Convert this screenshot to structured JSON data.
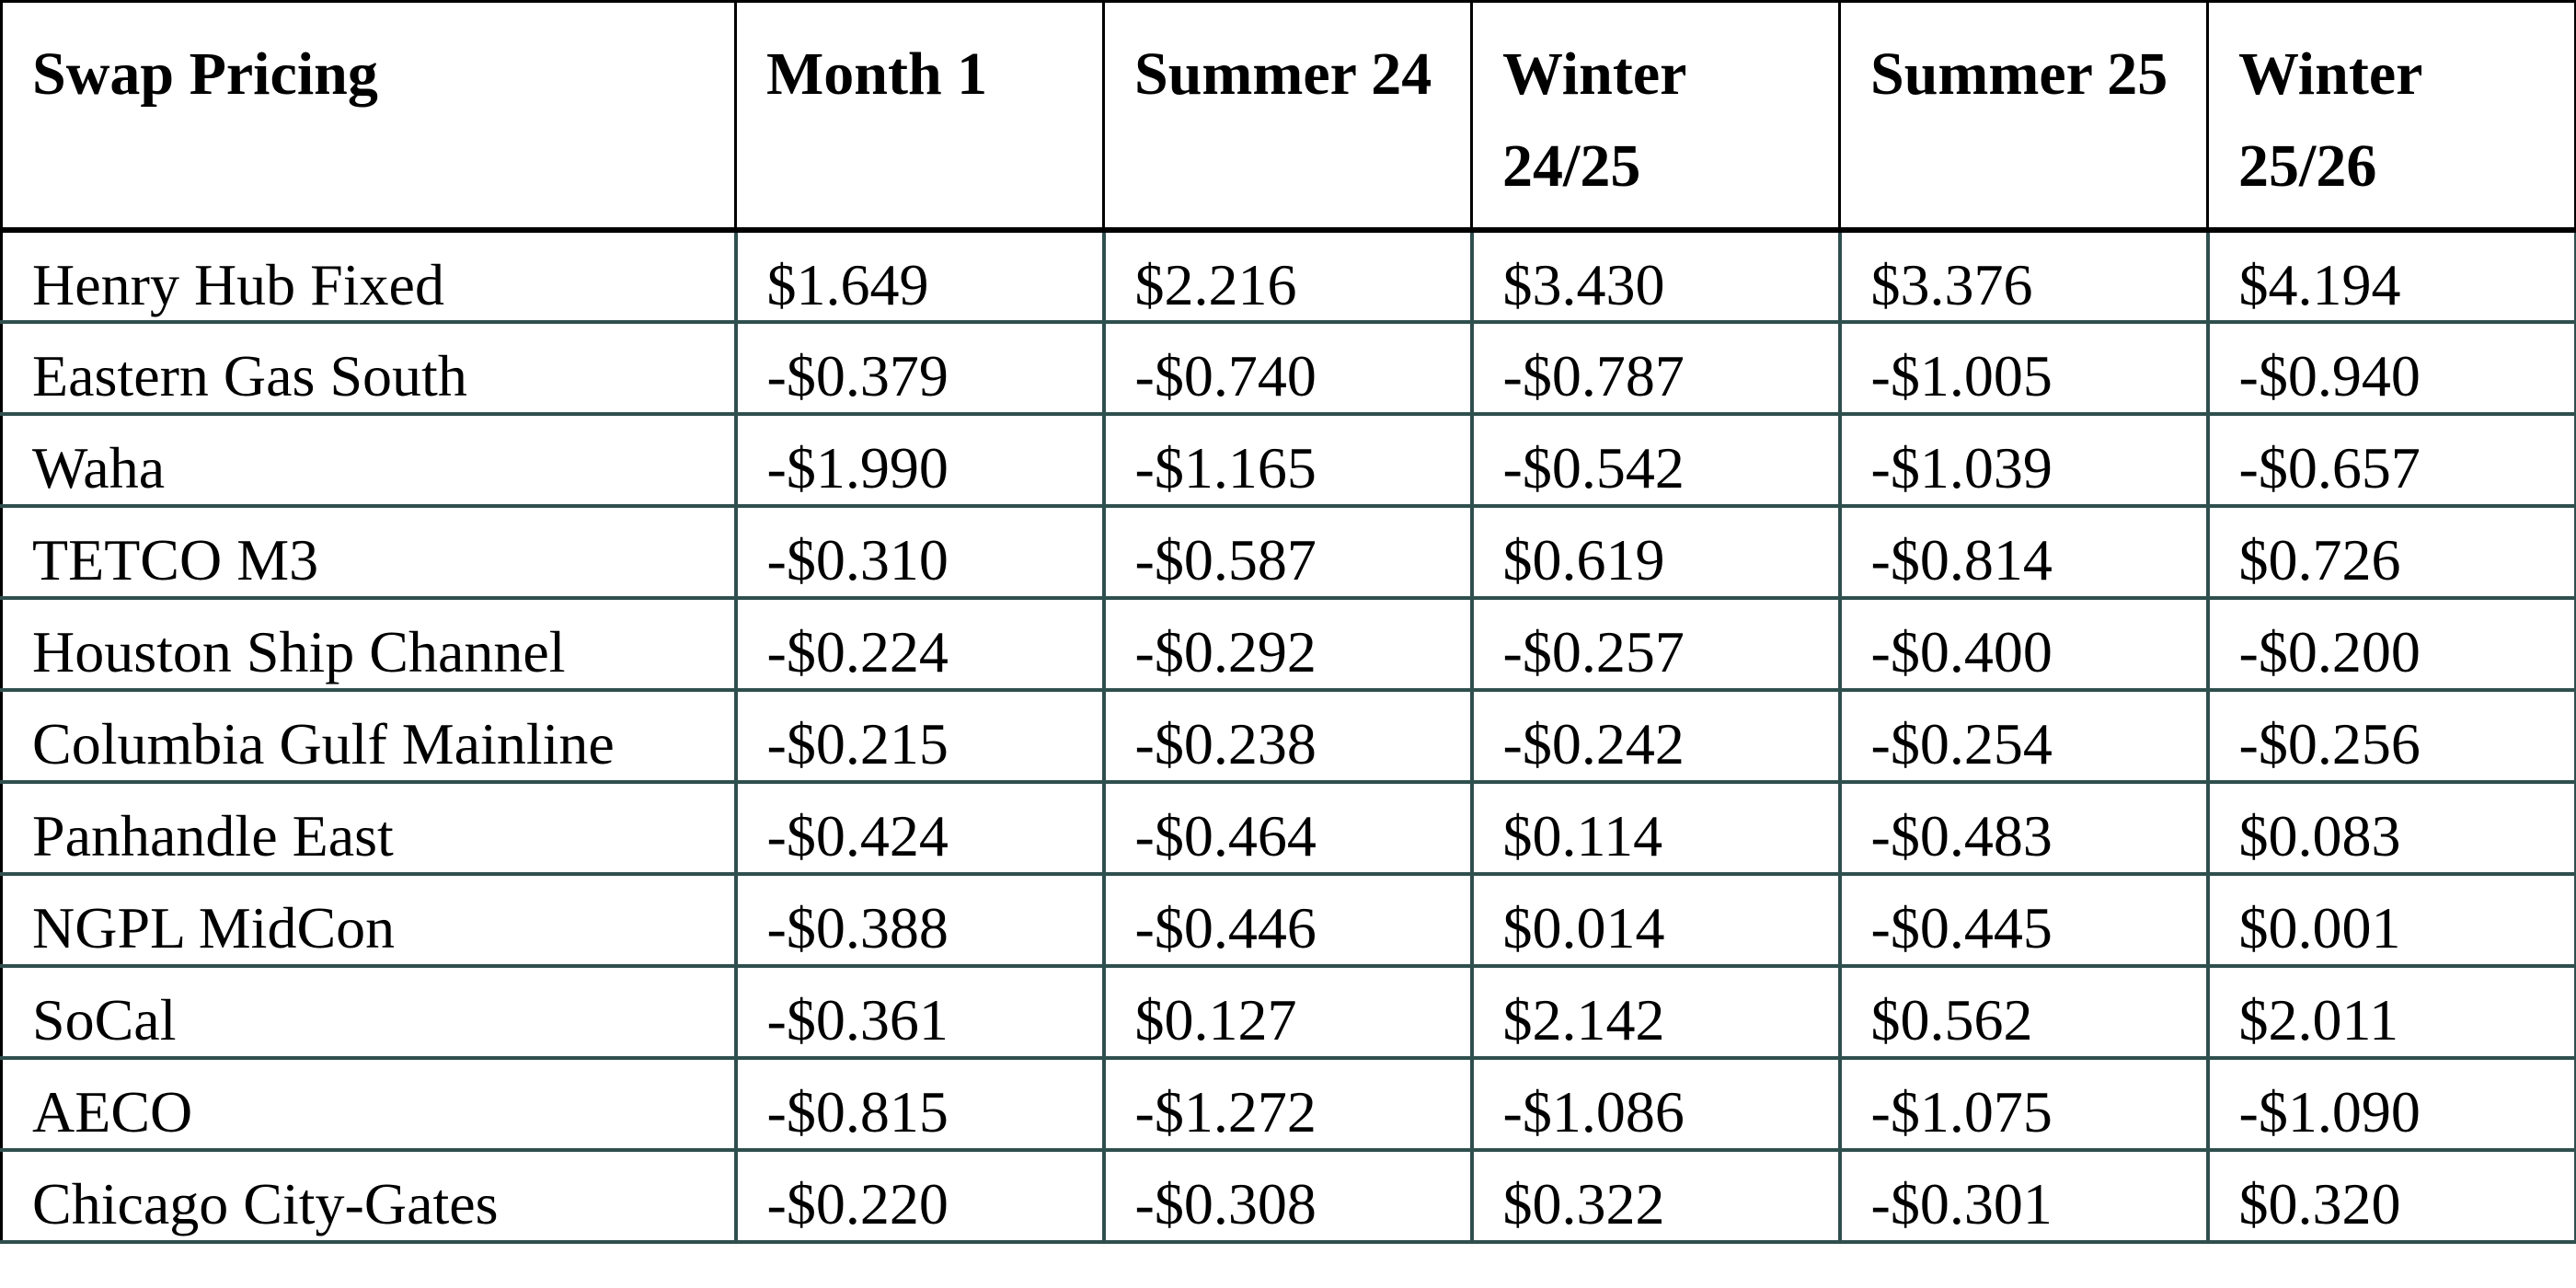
{
  "table": {
    "headers": [
      "Swap Pricing",
      "Month 1",
      "Summer 24",
      "Winter 24/25",
      "Summer 25",
      "Winter 25/26"
    ],
    "rows": [
      [
        "Henry Hub Fixed",
        "$1.649",
        "$2.216",
        "$3.430",
        "$3.376",
        "$4.194"
      ],
      [
        "Eastern Gas South",
        "-$0.379",
        "-$0.740",
        "-$0.787",
        "-$1.005",
        "-$0.940"
      ],
      [
        "Waha",
        "-$1.990",
        "-$1.165",
        "-$0.542",
        "-$1.039",
        "-$0.657"
      ],
      [
        "TETCO M3",
        "-$0.310",
        "-$0.587",
        "$0.619",
        "-$0.814",
        "$0.726"
      ],
      [
        "Houston Ship Channel",
        "-$0.224",
        "-$0.292",
        "-$0.257",
        "-$0.400",
        "-$0.200"
      ],
      [
        "Columbia Gulf Mainline",
        "-$0.215",
        "-$0.238",
        "-$0.242",
        "-$0.254",
        "-$0.256"
      ],
      [
        "Panhandle East",
        "-$0.424",
        "-$0.464",
        "$0.114",
        "-$0.483",
        "$0.083"
      ],
      [
        "NGPL MidCon",
        "-$0.388",
        "-$0.446",
        "$0.014",
        "-$0.445",
        "$0.001"
      ],
      [
        "SoCal",
        "-$0.361",
        "$0.127",
        "$2.142",
        "$0.562",
        "$2.011"
      ],
      [
        "AECO",
        "-$0.815",
        "-$1.272",
        "-$1.086",
        "-$1.075",
        "-$1.090"
      ],
      [
        "Chicago City-Gates",
        "-$0.220",
        "-$0.308",
        "$0.322",
        "-$0.301",
        "$0.320"
      ]
    ]
  },
  "colors": {
    "header_border": "#000000",
    "body_border": "#2f4f4f"
  }
}
